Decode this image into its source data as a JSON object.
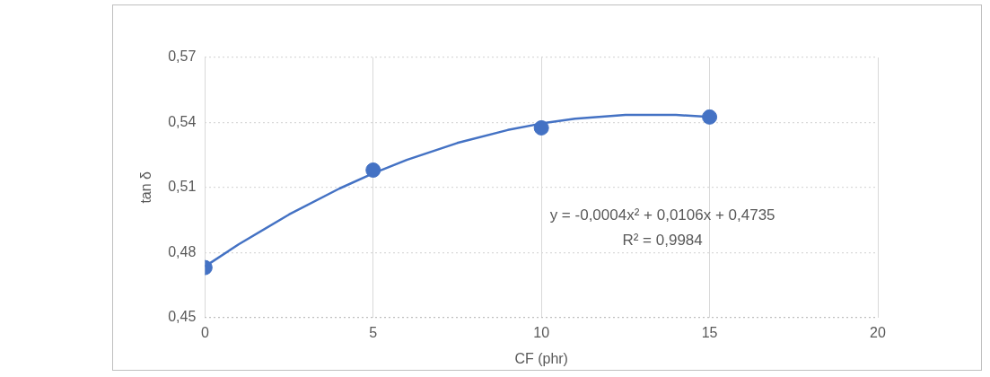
{
  "chart_data": {
    "type": "scatter",
    "xlabel": "CF (phr)",
    "ylabel": "tan δ",
    "xlim": [
      0,
      20
    ],
    "xticks": [
      0,
      5,
      10,
      15,
      20
    ],
    "ylim": [
      0.45,
      0.57
    ],
    "yticks": [
      {
        "value": 0.45,
        "label": "0,45"
      },
      {
        "value": 0.48,
        "label": "0,48"
      },
      {
        "value": 0.51,
        "label": "0,51"
      },
      {
        "value": 0.54,
        "label": "0,54"
      },
      {
        "value": 0.57,
        "label": "0,57"
      }
    ],
    "grid": true,
    "legend": false,
    "marker": "circle",
    "series": [
      {
        "type": "scatter",
        "color": "#4472c4",
        "x": [
          0,
          5,
          10,
          15
        ],
        "values": [
          0.473,
          0.518,
          0.5375,
          0.5425
        ]
      },
      {
        "type": "line",
        "color": "#4472c4",
        "marker": "none",
        "line_style": "solid",
        "x": [
          0,
          1,
          2.5,
          4,
          5,
          6,
          7.5,
          9,
          10,
          11,
          12.5,
          14,
          15
        ],
        "values": [
          0.4735,
          0.4837,
          0.4975,
          0.5095,
          0.5165,
          0.5227,
          0.5305,
          0.5365,
          0.5395,
          0.5417,
          0.5435,
          0.5435,
          0.5425
        ]
      }
    ],
    "annotations": [
      "y = -0,0004x² + 0,0106x + 0,4735",
      "R² = 0,9984"
    ]
  }
}
